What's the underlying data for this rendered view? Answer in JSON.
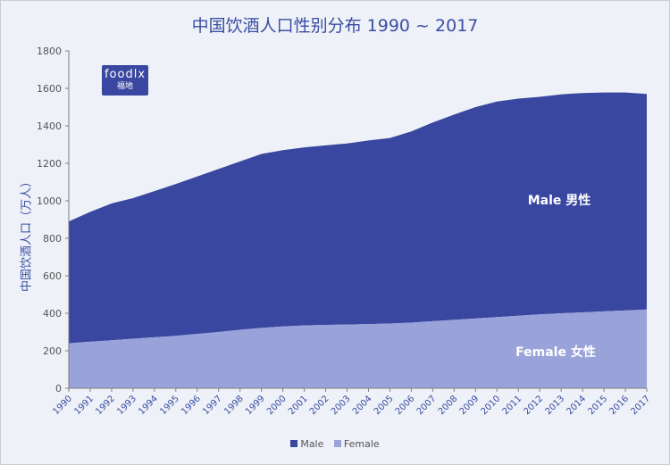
{
  "chart_data": {
    "type": "area",
    "title": "中国饮酒人口性别分布 1990 ~ 2017",
    "ylabel": "中国饮酒人口（万人）",
    "xlabel": "",
    "ylim": [
      0,
      1800
    ],
    "yticks": [
      0,
      200,
      400,
      600,
      800,
      1000,
      1200,
      1400,
      1600,
      1800
    ],
    "categories": [
      "1990",
      "1991",
      "1992",
      "1993",
      "1994",
      "1995",
      "1996",
      "1997",
      "1998",
      "1999",
      "2000",
      "2001",
      "2002",
      "2003",
      "2004",
      "2005",
      "2006",
      "2007",
      "2008",
      "2009",
      "2010",
      "2011",
      "2012",
      "2013",
      "2014",
      "2015",
      "2016",
      "2017"
    ],
    "stacked": true,
    "series": [
      {
        "name": "Female",
        "color": "#9aa2da",
        "values": [
          240,
          248,
          256,
          264,
          272,
          280,
          290,
          300,
          312,
          322,
          330,
          335,
          338,
          340,
          342,
          345,
          350,
          358,
          365,
          372,
          380,
          387,
          394,
          400,
          405,
          410,
          415,
          420
        ]
      },
      {
        "name": "Male",
        "color": "#3947a0",
        "values": [
          650,
          693,
          730,
          750,
          780,
          810,
          840,
          870,
          898,
          928,
          940,
          950,
          958,
          966,
          980,
          990,
          1020,
          1060,
          1095,
          1128,
          1150,
          1158,
          1161,
          1168,
          1170,
          1168,
          1163,
          1150
        ]
      }
    ],
    "area_labels": [
      {
        "series": "Male",
        "text": "Male 男性"
      },
      {
        "series": "Female",
        "text": "Female 女性"
      }
    ],
    "legend": [
      "Male",
      "Female"
    ],
    "legend_position": "bottom",
    "grid": false
  },
  "logo": {
    "line1": "foodlx",
    "line2": "福地"
  }
}
